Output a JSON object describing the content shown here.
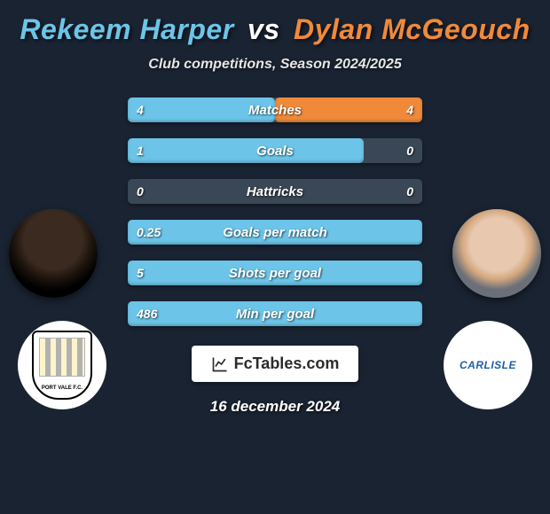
{
  "title": {
    "player1": "Rekeem Harper",
    "vs": "vs",
    "player2": "Dylan McGeouch"
  },
  "subtitle": "Club competitions, Season 2024/2025",
  "colors": {
    "p1": "#6cc5e8",
    "p2": "#f08a3a",
    "bar_bg": "#3a4756",
    "page_bg": "#1a2332"
  },
  "stats": [
    {
      "label": "Matches",
      "left_val": "4",
      "right_val": "4",
      "left_pct": 50,
      "right_pct": 50
    },
    {
      "label": "Goals",
      "left_val": "1",
      "right_val": "0",
      "left_pct": 80,
      "right_pct": 0
    },
    {
      "label": "Hattricks",
      "left_val": "0",
      "right_val": "0",
      "left_pct": 0,
      "right_pct": 0
    },
    {
      "label": "Goals per match",
      "left_val": "0.25",
      "right_val": "",
      "left_pct": 100,
      "right_pct": 0
    },
    {
      "label": "Shots per goal",
      "left_val": "5",
      "right_val": "",
      "left_pct": 100,
      "right_pct": 0
    },
    {
      "label": "Min per goal",
      "left_val": "486",
      "right_val": "",
      "left_pct": 100,
      "right_pct": 0
    }
  ],
  "clubs": {
    "left_name": "PORT VALE F.C.",
    "right_name": "CARLISLE"
  },
  "brand": "FcTables.com",
  "date": "16 december 2024"
}
